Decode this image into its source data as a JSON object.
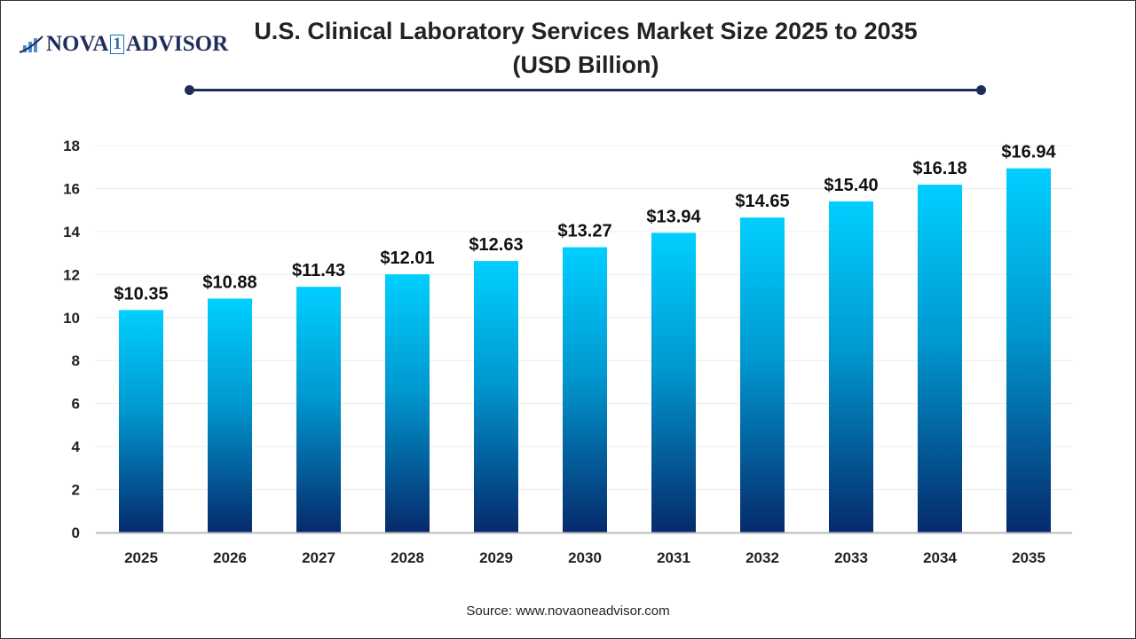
{
  "logo": {
    "text_left": "NOVA",
    "text_mid": "1",
    "text_right": "ADVISOR"
  },
  "source": "Source: www.novaoneadvisor.com",
  "colors": {
    "bar_top": "#00cfff",
    "bar_bottom": "#062a6b",
    "accent": "#1f2d5c"
  },
  "chart_data": {
    "type": "bar",
    "title": "U.S. Clinical Laboratory Services Market Size 2025 to 2035",
    "subtitle": "(USD Billion)",
    "categories": [
      "2025",
      "2026",
      "2027",
      "2028",
      "2029",
      "2030",
      "2031",
      "2032",
      "2033",
      "2034",
      "2035"
    ],
    "values": [
      10.35,
      10.88,
      11.43,
      12.01,
      12.63,
      13.27,
      13.94,
      14.65,
      15.4,
      16.18,
      16.94
    ],
    "data_labels": [
      "$10.35",
      "$10.88",
      "$11.43",
      "$12.01",
      "$12.63",
      "$13.27",
      "$13.94",
      "$14.65",
      "$15.40",
      "$16.18",
      "$16.94"
    ],
    "ylim": [
      0,
      18
    ],
    "yticks": [
      0,
      2,
      4,
      6,
      8,
      10,
      12,
      14,
      16,
      18
    ],
    "grid": true,
    "legend": "none"
  }
}
